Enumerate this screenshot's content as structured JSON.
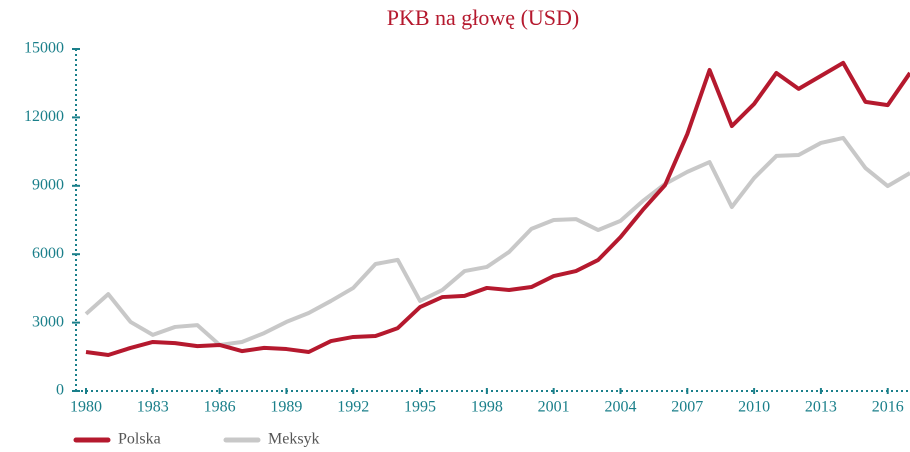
{
  "chart_data": {
    "type": "line",
    "title": "PKB na głowę (USD)",
    "x": [
      1980,
      1981,
      1982,
      1983,
      1984,
      1985,
      1986,
      1987,
      1988,
      1989,
      1990,
      1991,
      1992,
      1993,
      1994,
      1995,
      1996,
      1997,
      1998,
      1999,
      2000,
      2001,
      2002,
      2003,
      2004,
      2005,
      2006,
      2007,
      2008,
      2009,
      2010,
      2011,
      2012,
      2013,
      2014,
      2015,
      2016,
      2017
    ],
    "series": [
      {
        "name": "Polska",
        "color": "#b5192e",
        "values": [
          1710,
          1580,
          1890,
          2150,
          2100,
          1970,
          2020,
          1750,
          1890,
          1840,
          1710,
          2190,
          2370,
          2410,
          2760,
          3680,
          4120,
          4170,
          4520,
          4430,
          4560,
          5040,
          5260,
          5750,
          6750,
          7940,
          9030,
          11270,
          14080,
          11620,
          12590,
          13950,
          13250,
          13820,
          14390,
          12680,
          12540,
          13950
        ]
      },
      {
        "name": "Meksyk",
        "color": "#c8c8c8",
        "values": [
          3380,
          4250,
          3030,
          2460,
          2810,
          2890,
          2020,
          2150,
          2540,
          3030,
          3420,
          3950,
          4520,
          5570,
          5750,
          3950,
          4430,
          5260,
          5440,
          6100,
          7110,
          7500,
          7540,
          7060,
          7460,
          8330,
          9080,
          9610,
          10040,
          8070,
          9340,
          10310,
          10350,
          10880,
          11100,
          9780,
          8990,
          9560
        ]
      }
    ],
    "xlim": [
      1980,
      2017
    ],
    "xticks": [
      1980,
      1983,
      1986,
      1989,
      1992,
      1995,
      1998,
      2001,
      2004,
      2007,
      2010,
      2013,
      2016
    ],
    "ylim": [
      0,
      15000
    ],
    "yticks": [
      0,
      3000,
      6000,
      9000,
      12000,
      15000
    ]
  }
}
